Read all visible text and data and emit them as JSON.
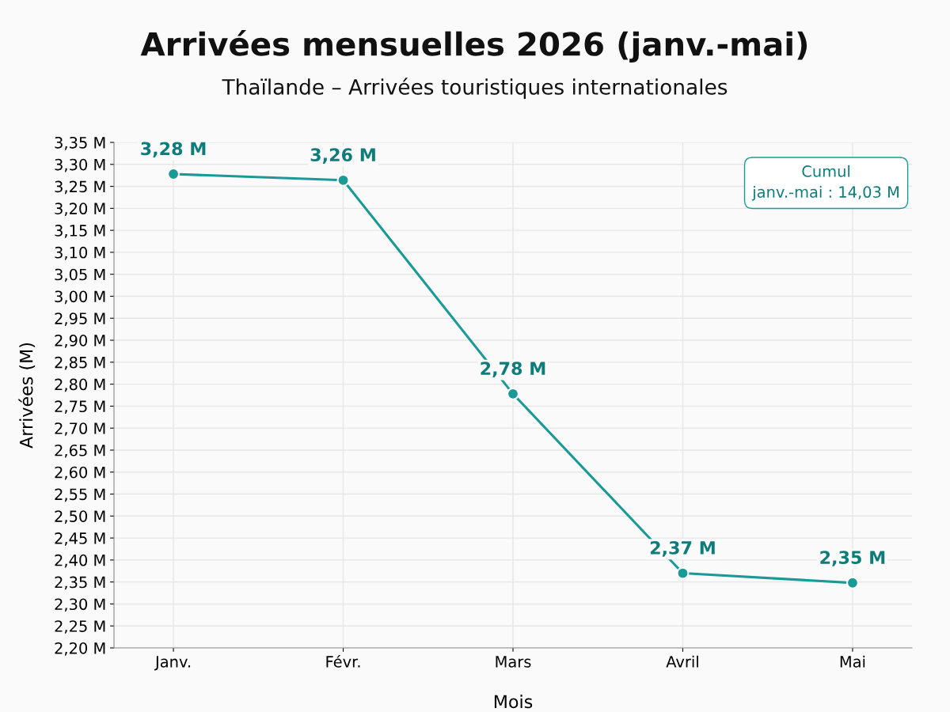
{
  "chart_data": {
    "type": "line",
    "title": "Arrivées mensuelles 2026 (janv.-mai)",
    "subtitle": "Thaïlande – Arrivées touristiques internationales",
    "xlabel": "Mois",
    "ylabel": "Arrivées (M)",
    "categories": [
      "Janv.",
      "Févr.",
      "Mars",
      "Avril",
      "Mai"
    ],
    "series": [
      {
        "color": "#1a9a96",
        "values": [
          3.278,
          3.264,
          2.778,
          2.37,
          2.348
        ],
        "value_labels": [
          "3,28 M",
          "3,26 M",
          "2,78 M",
          "2,37 M",
          "2,35 M"
        ]
      }
    ],
    "ylim": [
      2.2,
      3.35
    ],
    "yticks": [
      {
        "value": 2.2,
        "label": "2,20 M"
      },
      {
        "value": 2.25,
        "label": "2,25 M"
      },
      {
        "value": 2.3,
        "label": "2,30 M"
      },
      {
        "value": 2.35,
        "label": "2,35 M"
      },
      {
        "value": 2.4,
        "label": "2,40 M"
      },
      {
        "value": 2.45,
        "label": "2,45 M"
      },
      {
        "value": 2.5,
        "label": "2,50 M"
      },
      {
        "value": 2.55,
        "label": "2,55 M"
      },
      {
        "value": 2.6,
        "label": "2,60 M"
      },
      {
        "value": 2.65,
        "label": "2,65 M"
      },
      {
        "value": 2.7,
        "label": "2,70 M"
      },
      {
        "value": 2.75,
        "label": "2,75 M"
      },
      {
        "value": 2.8,
        "label": "2,80 M"
      },
      {
        "value": 2.85,
        "label": "2,85 M"
      },
      {
        "value": 2.9,
        "label": "2,90 M"
      },
      {
        "value": 2.95,
        "label": "2,95 M"
      },
      {
        "value": 3.0,
        "label": "3,00 M"
      },
      {
        "value": 3.05,
        "label": "3,05 M"
      },
      {
        "value": 3.1,
        "label": "3,10 M"
      },
      {
        "value": 3.15,
        "label": "3,15 M"
      },
      {
        "value": 3.2,
        "label": "3,20 M"
      },
      {
        "value": 3.25,
        "label": "3,25 M"
      },
      {
        "value": 3.3,
        "label": "3,30 M"
      },
      {
        "value": 3.35,
        "label": "3,35 M"
      }
    ],
    "grid": true,
    "marker": "circle",
    "line_style": "solid",
    "annotations": [
      "Cumul\njanv.-mai : 14,03 M"
    ]
  }
}
